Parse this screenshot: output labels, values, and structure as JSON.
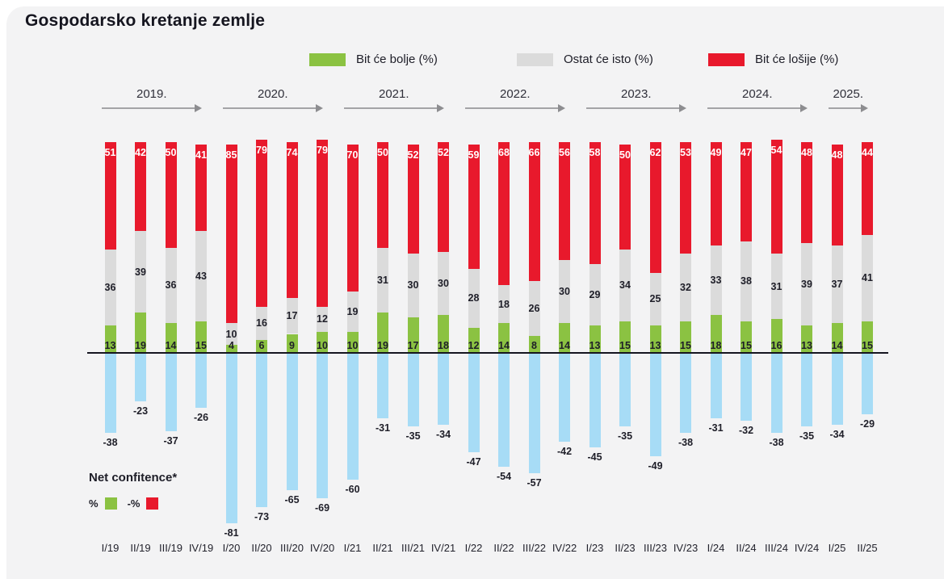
{
  "title": "Gospodarsko kretanje zemlje",
  "legend": [
    {
      "label": "Bit će bolje (%)",
      "color": "#8bc242"
    },
    {
      "label": "Ostat će isto (%)",
      "color": "#dbdbdb"
    },
    {
      "label": "Bit će lošije (%)",
      "color": "#e8192c"
    }
  ],
  "net_legend": {
    "title": "Net confitence*",
    "pos_label": "%",
    "neg_label": "-%",
    "pos_color": "#8bc242",
    "neg_color": "#e8192c"
  },
  "colors": {
    "better": "#8bc242",
    "same": "#dbdbdb",
    "worse": "#e8192c",
    "net": "#a7dcf6",
    "background": "#f3f3f4",
    "text_dark": "#1e1e28"
  },
  "chart_data": {
    "type": "bar",
    "stacked": true,
    "title": "Gospodarsko kretanje zemlje",
    "xlabel": "",
    "ylabel": "",
    "ylim": [
      -100,
      105
    ],
    "grid": false,
    "legend_position": "top",
    "categories": [
      "I/19",
      "II/19",
      "III/19",
      "IV/19",
      "I/20",
      "II/20",
      "III/20",
      "IV/20",
      "I/21",
      "II/21",
      "III/21",
      "IV/21",
      "I/22",
      "II/22",
      "III/22",
      "IV/22",
      "I/23",
      "II/23",
      "III/23",
      "IV/23",
      "I/24",
      "II/24",
      "III/24",
      "IV/24",
      "I/25",
      "II/25"
    ],
    "year_groups": [
      {
        "label": "2019.",
        "from": 0,
        "to": 3
      },
      {
        "label": "2020.",
        "from": 4,
        "to": 7
      },
      {
        "label": "2021.",
        "from": 8,
        "to": 11
      },
      {
        "label": "2022.",
        "from": 12,
        "to": 15
      },
      {
        "label": "2023.",
        "from": 16,
        "to": 19
      },
      {
        "label": "2024.",
        "from": 20,
        "to": 23
      },
      {
        "label": "2025.",
        "from": 24,
        "to": 25
      }
    ],
    "series": [
      {
        "name": "Bit će bolje (%)",
        "color": "#8bc242",
        "values": [
          13,
          19,
          14,
          15,
          4,
          6,
          9,
          10,
          10,
          19,
          17,
          18,
          12,
          14,
          8,
          14,
          13,
          15,
          13,
          15,
          18,
          15,
          16,
          13,
          14,
          15
        ]
      },
      {
        "name": "Ostat će isto (%)",
        "color": "#dbdbdb",
        "values": [
          36,
          39,
          36,
          43,
          10,
          16,
          17,
          12,
          19,
          31,
          30,
          30,
          28,
          18,
          26,
          30,
          29,
          34,
          25,
          32,
          33,
          38,
          31,
          39,
          37,
          41
        ]
      },
      {
        "name": "Bit će lošije (%)",
        "color": "#e8192c",
        "values": [
          51,
          42,
          50,
          41,
          85,
          79,
          74,
          79,
          70,
          50,
          52,
          52,
          59,
          68,
          66,
          56,
          58,
          50,
          62,
          53,
          49,
          47,
          54,
          48,
          48,
          44
        ]
      },
      {
        "name": "Net confitence",
        "color": "#a7dcf6",
        "values": [
          -38,
          -23,
          -37,
          -26,
          -81,
          -73,
          -65,
          -69,
          -60,
          -31,
          -35,
          -34,
          -47,
          -54,
          -57,
          -42,
          -45,
          -35,
          -49,
          -38,
          -31,
          -32,
          -38,
          -35,
          -34,
          -29
        ]
      }
    ]
  }
}
